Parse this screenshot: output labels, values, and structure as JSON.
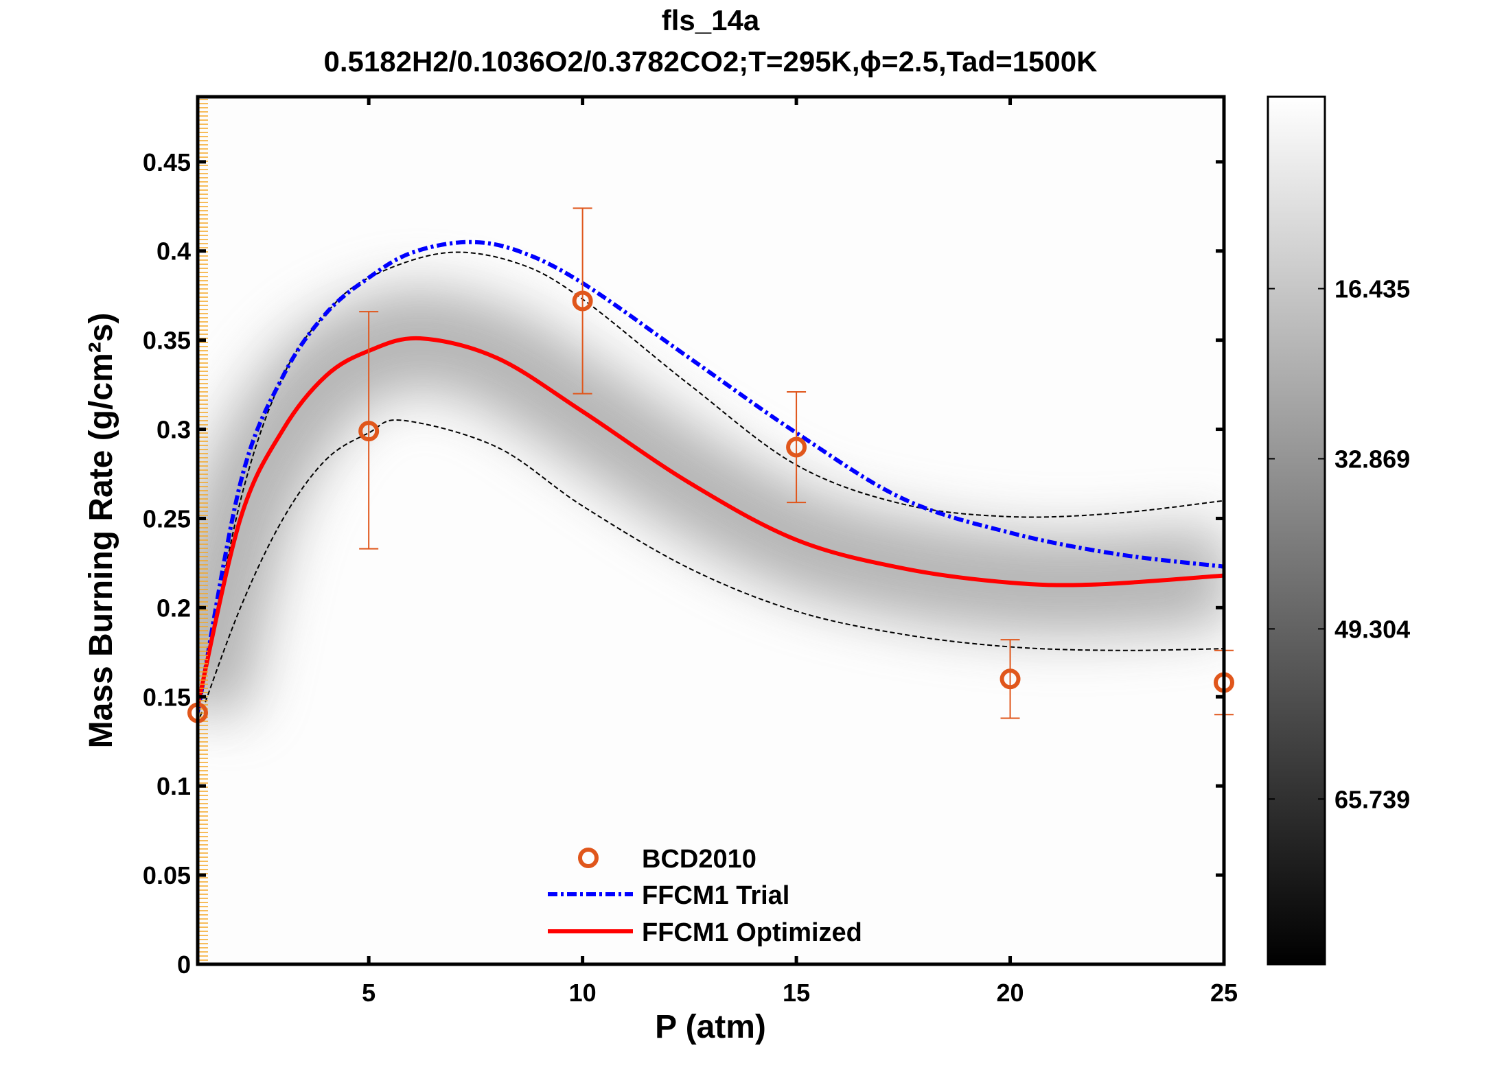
{
  "chart_data": {
    "type": "line",
    "title": "fls_14a",
    "subtitle": "0.5182H2/0.1036O2/0.3782CO2;T=295K,ϕ=2.5,Tad=1500K",
    "xlabel": "P (atm)",
    "ylabel": "Mass Burning Rate (g/cm²s)",
    "xlim": [
      1,
      25
    ],
    "ylim": [
      0,
      0.4865
    ],
    "xticks": [
      5,
      10,
      15,
      20,
      25
    ],
    "yticks": [
      0,
      0.05,
      0.1,
      0.15,
      0.2,
      0.25,
      0.3,
      0.35,
      0.4,
      0.45
    ],
    "ytick_labels": [
      "0",
      "0.05",
      "0.1",
      "0.15",
      "0.2",
      "0.25",
      "0.3",
      "0.35",
      "0.4",
      "0.45"
    ],
    "grid": false,
    "legend_position": "bottom-center",
    "series": [
      {
        "name": "BCD2010",
        "kind": "scatter",
        "color": "#e0561b",
        "x": [
          1,
          5,
          10,
          15,
          20,
          25
        ],
        "y": [
          0.141,
          0.299,
          0.372,
          0.29,
          0.16,
          0.158
        ],
        "err_low": [
          null,
          0.233,
          0.32,
          0.259,
          0.138,
          0.14
        ],
        "err_high": [
          null,
          0.366,
          0.424,
          0.321,
          0.182,
          0.176
        ]
      },
      {
        "name": "FFCM1 Trial",
        "kind": "line",
        "style": "dash-dot",
        "color": "#0000ff",
        "x": [
          1,
          2,
          3,
          4,
          5,
          6,
          7.3,
          8.5,
          10,
          12.5,
          15,
          17.5,
          20,
          22.5,
          25
        ],
        "y": [
          0.141,
          0.27,
          0.33,
          0.365,
          0.385,
          0.399,
          0.405,
          0.4,
          0.382,
          0.34,
          0.298,
          0.261,
          0.242,
          0.23,
          0.223
        ]
      },
      {
        "name": "FFCM1 Optimized",
        "kind": "line",
        "style": "solid",
        "color": "#ff0000",
        "x": [
          1,
          2,
          3,
          4,
          5,
          6.2,
          8,
          10,
          12.5,
          15,
          17.5,
          20,
          22,
          25
        ],
        "y": [
          0.145,
          0.25,
          0.3,
          0.33,
          0.344,
          0.351,
          0.34,
          0.31,
          0.27,
          0.238,
          0.222,
          0.214,
          0.213,
          0.218
        ]
      },
      {
        "kind": "line",
        "style": "dashed",
        "color": "#000000",
        "x": [
          1,
          2,
          3,
          4,
          5,
          6.8,
          8.5,
          10,
          12.5,
          15,
          17.5,
          20,
          22.5,
          25
        ],
        "y": [
          0.14,
          0.26,
          0.33,
          0.365,
          0.385,
          0.399,
          0.393,
          0.373,
          0.325,
          0.28,
          0.258,
          0.251,
          0.253,
          0.26
        ]
      },
      {
        "kind": "line",
        "style": "dashed",
        "color": "#000000",
        "x": [
          1,
          2,
          3,
          4,
          5,
          5.8,
          8,
          10,
          12.5,
          15,
          17.5,
          20,
          22.5,
          25
        ],
        "y": [
          0.135,
          0.2,
          0.25,
          0.283,
          0.298,
          0.305,
          0.29,
          0.257,
          0.222,
          0.198,
          0.185,
          0.178,
          0.176,
          0.177
        ]
      }
    ],
    "colorbar": {
      "colormap": "gray (white top, black bottom)",
      "range": [
        -2.1,
        81.7
      ],
      "ticks": [
        16.435,
        32.869,
        49.304,
        65.739
      ],
      "tick_labels": [
        "16.435",
        "32.869",
        "49.304",
        "65.739"
      ]
    }
  }
}
